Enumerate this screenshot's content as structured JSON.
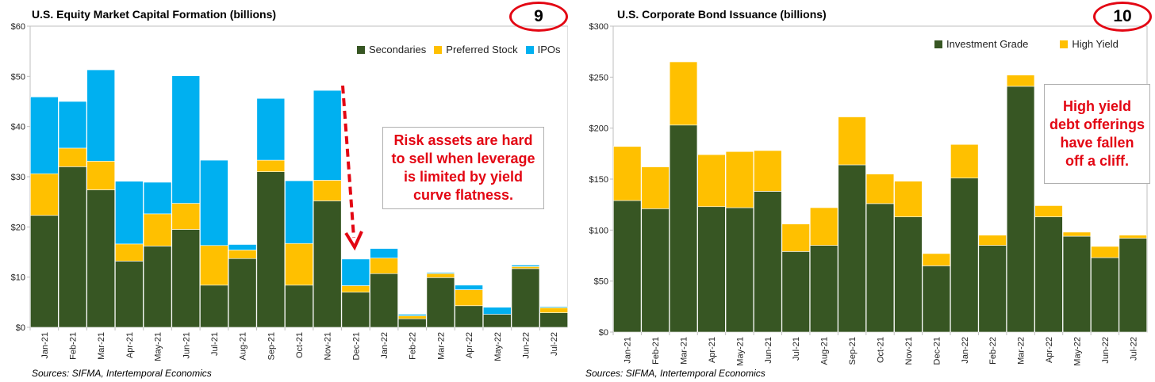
{
  "colors": {
    "secondaries": "#375623",
    "preferred": "#ffc000",
    "ipos": "#00b0f0",
    "investment_grade": "#375623",
    "high_yield": "#ffc000",
    "annotation_red": "#e30613"
  },
  "left": {
    "title": "U.S. Equity Market Capital Formation (billions)",
    "badge": "9",
    "source": "Sources: SIFMA, Intertemporal Economics",
    "annotation": "Risk assets are hard to sell when leverage is limited by yield curve flatness."
  },
  "right": {
    "title": "U.S. Corporate Bond Issuance (billions)",
    "badge": "10",
    "source": "Sources: SIFMA, Intertemporal Economics",
    "annotation": "High yield debt offerings have fallen off a cliff."
  },
  "chart_data": [
    {
      "type": "bar",
      "stacked": true,
      "title": "U.S. Equity Market Capital Formation (billions)",
      "categories": [
        "Jan-21",
        "Feb-21",
        "Mar-21",
        "Apr-21",
        "May-21",
        "Jun-21",
        "Jul-21",
        "Aug-21",
        "Sep-21",
        "Oct-21",
        "Nov-21",
        "Dec-21",
        "Jan-22",
        "Feb-22",
        "Mar-22",
        "Apr-22",
        "May-22",
        "Jun-22",
        "Jul-22"
      ],
      "series": [
        {
          "name": "Secondaries",
          "values": [
            22.3,
            32.0,
            27.4,
            13.2,
            16.2,
            19.5,
            8.4,
            13.7,
            31.0,
            8.4,
            25.2,
            7.0,
            10.7,
            1.7,
            9.9,
            4.3,
            2.6,
            11.7,
            2.9
          ]
        },
        {
          "name": "Preferred Stock",
          "values": [
            8.3,
            3.7,
            5.7,
            3.4,
            6.4,
            5.2,
            7.9,
            1.7,
            2.3,
            8.3,
            4.1,
            1.3,
            3.1,
            0.6,
            0.8,
            3.2,
            0.0,
            0.4,
            1.0
          ]
        },
        {
          "name": "IPOs",
          "values": [
            15.3,
            9.3,
            18.2,
            12.5,
            6.3,
            25.4,
            17.0,
            1.1,
            12.3,
            12.5,
            17.9,
            5.3,
            1.9,
            0.3,
            0.2,
            0.9,
            1.4,
            0.3,
            0.2
          ]
        }
      ],
      "yticks": [
        "$0",
        "$10",
        "$20",
        "$30",
        "$40",
        "$50",
        "$60"
      ],
      "ylim": [
        0,
        60
      ],
      "legend_position": "top-right"
    },
    {
      "type": "bar",
      "stacked": true,
      "title": "U.S. Corporate Bond Issuance (billions)",
      "categories": [
        "Jan-21",
        "Feb-21",
        "Mar-21",
        "Apr-21",
        "May-21",
        "Jun-21",
        "Jul-21",
        "Aug-21",
        "Sep-21",
        "Oct-21",
        "Nov-21",
        "Dec-21",
        "Jan-22",
        "Feb-22",
        "Mar-22",
        "Apr-22",
        "May-22",
        "Jun-22",
        "Jul-22"
      ],
      "series": [
        {
          "name": "Investment Grade",
          "values": [
            129,
            121,
            203,
            123,
            122,
            138,
            79,
            85,
            164,
            126,
            113,
            65,
            151,
            85,
            241,
            113,
            94,
            73,
            92
          ]
        },
        {
          "name": "High Yield",
          "values": [
            53,
            41,
            62,
            51,
            55,
            40,
            27,
            37,
            47,
            29,
            35,
            12,
            33,
            10,
            11,
            11,
            4,
            11,
            3
          ]
        }
      ],
      "yticks": [
        "$0",
        "$50",
        "$100",
        "$150",
        "$200",
        "$250",
        "$300"
      ],
      "ylim": [
        0,
        300
      ],
      "legend_position": "top-right"
    }
  ]
}
